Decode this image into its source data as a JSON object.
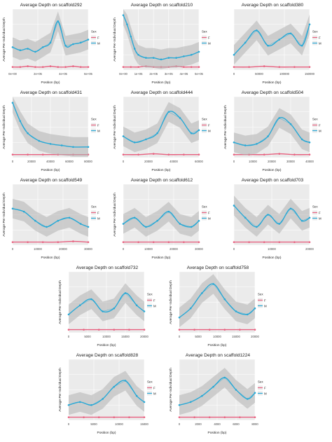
{
  "legend": {
    "title": "Sex",
    "labels": [
      "F",
      "M"
    ]
  },
  "colors": {
    "F": "#e8607f",
    "M": "#29a9d6",
    "band": "#b3b3b3",
    "panel": "#ebebeb",
    "grid": "#ffffff"
  },
  "chart_data": [
    {
      "type": "scatter",
      "title": "Average Depth on scaffold292",
      "xlabel": "Position (bp)",
      "ylabel": "Average Per-Individual Depth",
      "x_ticks": [
        "0e+00",
        "2e+05",
        "4e+05",
        "6e+05"
      ],
      "y_ticks": [
        "",
        "",
        "",
        ""
      ],
      "ylim": [
        0,
        4
      ],
      "grid": true,
      "legend": "right",
      "series": [
        {
          "name": "F",
          "x": [
            0.0,
            0.1,
            0.2,
            0.3,
            0.4,
            0.5,
            0.6,
            0.7,
            0.8,
            0.9,
            1.0
          ],
          "y": [
            0.2,
            0.2,
            0.25,
            0.2,
            0.2,
            0.25,
            0.2,
            0.2,
            0.25,
            0.2,
            0.2
          ]
        },
        {
          "name": "M",
          "x": [
            0.0,
            0.1,
            0.2,
            0.3,
            0.4,
            0.5,
            0.6,
            0.7,
            0.8,
            0.9,
            1.0
          ],
          "y": [
            1.5,
            1.3,
            1.4,
            1.2,
            1.5,
            1.8,
            3.2,
            1.6,
            1.7,
            1.8,
            2.0
          ]
        }
      ]
    },
    {
      "type": "scatter",
      "title": "Average Depth on scaffold210",
      "xlabel": "Position (bp)",
      "ylabel": "Average Per-Individual Depth",
      "x_ticks": [
        "0e+00",
        "1e+05",
        "2e+05",
        "3e+05",
        "4e+05",
        "5e+05"
      ],
      "y_ticks": [
        "",
        "",
        "",
        ""
      ],
      "ylim": [
        0,
        4
      ],
      "grid": true,
      "legend": "right",
      "series": [
        {
          "name": "F",
          "x": [
            0.0,
            0.1,
            0.2,
            0.3,
            0.4,
            0.5,
            0.6,
            0.7,
            0.8,
            0.9,
            1.0
          ],
          "y": [
            0.2,
            0.2,
            0.2,
            0.25,
            0.2,
            0.2,
            0.2,
            0.25,
            0.2,
            0.2,
            0.2
          ]
        },
        {
          "name": "M",
          "x": [
            0.0,
            0.05,
            0.1,
            0.15,
            0.2,
            0.3,
            0.4,
            0.5,
            0.6,
            0.7,
            0.8,
            0.9,
            1.0
          ],
          "y": [
            3.6,
            3.0,
            2.2,
            1.4,
            1.0,
            0.8,
            0.8,
            0.7,
            0.8,
            0.8,
            0.9,
            1.0,
            1.2
          ]
        }
      ]
    },
    {
      "type": "scatter",
      "title": "Average Depth on scaffold380",
      "xlabel": "Position (bp)",
      "ylabel": "",
      "x_ticks": [
        "0",
        "50000",
        "100000",
        "150000"
      ],
      "y_ticks": [
        "",
        "",
        "",
        ""
      ],
      "ylim": [
        0,
        4
      ],
      "grid": true,
      "legend": "right",
      "series": [
        {
          "name": "F",
          "x": [
            0.0,
            0.2,
            0.4,
            0.6,
            0.8,
            1.0
          ],
          "y": [
            0.2,
            0.2,
            0.25,
            0.2,
            0.2,
            0.2
          ]
        },
        {
          "name": "M",
          "x": [
            0.0,
            0.15,
            0.3,
            0.45,
            0.6,
            0.75,
            0.9,
            1.0
          ],
          "y": [
            1.0,
            1.8,
            2.6,
            1.6,
            2.0,
            2.4,
            1.6,
            3.0
          ]
        }
      ]
    },
    {
      "type": "scatter",
      "title": "Average Depth on scaffold431",
      "xlabel": "Position (bp)",
      "ylabel": "Average Per-Individual Depth",
      "x_ticks": [
        "0",
        "20000",
        "40000",
        "60000",
        "80000"
      ],
      "y_ticks": [
        "",
        "",
        "",
        ""
      ],
      "ylim": [
        0,
        4
      ],
      "grid": true,
      "legend": "right",
      "series": [
        {
          "name": "F",
          "x": [
            0.0,
            0.2,
            0.4,
            0.6,
            0.8,
            1.0
          ],
          "y": [
            0.2,
            0.2,
            0.2,
            0.2,
            0.2,
            0.2
          ]
        },
        {
          "name": "M",
          "x": [
            0.0,
            0.1,
            0.2,
            0.35,
            0.5,
            0.65,
            0.8,
            1.0
          ],
          "y": [
            3.6,
            2.4,
            1.6,
            1.1,
            0.9,
            0.8,
            0.7,
            0.7
          ]
        }
      ]
    },
    {
      "type": "scatter",
      "title": "Average Depth on scaffold444",
      "xlabel": "Position (bp)",
      "ylabel": "Average Per-Individual Depth",
      "x_ticks": [
        "0",
        "20000",
        "40000",
        "60000"
      ],
      "y_ticks": [
        "",
        "",
        "",
        ""
      ],
      "ylim": [
        0,
        4
      ],
      "grid": true,
      "legend": "right",
      "series": [
        {
          "name": "F",
          "x": [
            0.0,
            0.2,
            0.4,
            0.6,
            0.8,
            1.0
          ],
          "y": [
            0.2,
            0.2,
            0.25,
            0.2,
            0.2,
            0.2
          ]
        },
        {
          "name": "M",
          "x": [
            0.0,
            0.15,
            0.3,
            0.45,
            0.6,
            0.75,
            0.9,
            1.0
          ],
          "y": [
            1.4,
            1.0,
            1.2,
            1.6,
            3.0,
            2.6,
            1.6,
            1.8
          ]
        }
      ]
    },
    {
      "type": "scatter",
      "title": "Average Depth on scaffold504",
      "xlabel": "Position (bp)",
      "ylabel": "Average Per-Individual Depth",
      "x_ticks": [
        "0",
        "10000",
        "20000",
        "30000",
        "40000"
      ],
      "y_ticks": [
        "",
        "",
        "",
        ""
      ],
      "ylim": [
        0,
        4
      ],
      "grid": true,
      "legend": "right",
      "series": [
        {
          "name": "F",
          "x": [
            0.0,
            0.2,
            0.4,
            0.6,
            0.8,
            1.0
          ],
          "y": [
            0.2,
            0.2,
            0.2,
            0.25,
            0.2,
            0.2
          ]
        },
        {
          "name": "M",
          "x": [
            0.0,
            0.15,
            0.3,
            0.45,
            0.6,
            0.75,
            0.9,
            1.0
          ],
          "y": [
            1.0,
            0.8,
            0.9,
            1.4,
            2.6,
            2.2,
            1.2,
            1.0
          ]
        }
      ]
    },
    {
      "type": "scatter",
      "title": "Average Depth on scaffold549",
      "xlabel": "Position (bp)",
      "ylabel": "Average Per-Individual Depth",
      "x_ticks": [
        "0",
        "10000",
        "20000",
        "30000"
      ],
      "y_ticks": [
        "",
        "",
        "",
        ""
      ],
      "ylim": [
        0,
        4
      ],
      "grid": true,
      "legend": "right",
      "series": [
        {
          "name": "F",
          "x": [
            0.0,
            0.2,
            0.4,
            0.6,
            0.8,
            1.0
          ],
          "y": [
            0.2,
            0.2,
            0.2,
            0.2,
            0.25,
            0.2
          ]
        },
        {
          "name": "M",
          "x": [
            0.0,
            0.15,
            0.3,
            0.45,
            0.6,
            0.75,
            0.9,
            1.0
          ],
          "y": [
            2.4,
            2.2,
            1.6,
            1.2,
            1.6,
            1.8,
            1.4,
            1.2
          ]
        }
      ]
    },
    {
      "type": "scatter",
      "title": "Average Depth on scaffold612",
      "xlabel": "Position (bp)",
      "ylabel": "Average Per-Individual Depth",
      "x_ticks": [
        "0",
        "10000",
        "20000",
        "30000"
      ],
      "y_ticks": [
        "",
        "",
        "",
        ""
      ],
      "ylim": [
        0,
        4
      ],
      "grid": true,
      "legend": "right",
      "series": [
        {
          "name": "F",
          "x": [
            0.0,
            0.2,
            0.4,
            0.6,
            0.8,
            1.0
          ],
          "y": [
            0.2,
            0.2,
            0.2,
            0.2,
            0.2,
            0.2
          ]
        },
        {
          "name": "M",
          "x": [
            0.0,
            0.15,
            0.3,
            0.45,
            0.6,
            0.75,
            0.9,
            1.0
          ],
          "y": [
            1.4,
            1.8,
            1.2,
            1.6,
            2.2,
            1.4,
            1.2,
            1.6
          ]
        }
      ]
    },
    {
      "type": "scatter",
      "title": "Average Depth on scaffold703",
      "xlabel": "Position (bp)",
      "ylabel": "",
      "x_ticks": [
        "0",
        "10000",
        "20000"
      ],
      "y_ticks": [
        "",
        "",
        "",
        ""
      ],
      "ylim": [
        0,
        4
      ],
      "grid": true,
      "legend": "right",
      "series": [
        {
          "name": "F",
          "x": [
            0.0,
            0.2,
            0.4,
            0.6,
            0.8,
            1.0
          ],
          "y": [
            0.2,
            0.2,
            0.2,
            0.2,
            0.2,
            0.2
          ]
        },
        {
          "name": "M",
          "x": [
            0.0,
            0.15,
            0.3,
            0.45,
            0.6,
            0.75,
            0.9,
            1.0
          ],
          "y": [
            2.6,
            1.8,
            1.2,
            2.0,
            1.4,
            2.4,
            1.6,
            1.8
          ]
        }
      ]
    },
    {
      "type": "scatter",
      "title": "Average Depth on scaffold732",
      "xlabel": "Position (bp)",
      "ylabel": "Average Per-Individual Depth",
      "x_ticks": [
        "0",
        "5000",
        "10000",
        "15000",
        "20000"
      ],
      "y_ticks": [
        "",
        "",
        "",
        ""
      ],
      "ylim": [
        0,
        4
      ],
      "grid": true,
      "legend": "right",
      "series": [
        {
          "name": "F",
          "x": [
            0.0,
            0.2,
            0.4,
            0.6,
            0.8,
            1.0
          ],
          "y": [
            0.2,
            0.2,
            0.2,
            0.2,
            0.2,
            0.2
          ]
        },
        {
          "name": "M",
          "x": [
            0.0,
            0.15,
            0.3,
            0.45,
            0.6,
            0.75,
            0.9,
            1.0
          ],
          "y": [
            1.2,
            1.8,
            2.2,
            1.4,
            1.6,
            2.6,
            1.8,
            1.4
          ]
        }
      ]
    },
    {
      "type": "scatter",
      "title": "Average Depth on scaffold758",
      "xlabel": "Position (bp)",
      "ylabel": "Average Per-Individual Depth",
      "x_ticks": [
        "0",
        "5000",
        "10000",
        "15000",
        "20000"
      ],
      "y_ticks": [
        "",
        "",
        "",
        ""
      ],
      "ylim": [
        0,
        4
      ],
      "grid": true,
      "legend": "right",
      "series": [
        {
          "name": "F",
          "x": [
            0.0,
            0.2,
            0.4,
            0.6,
            0.8,
            1.0
          ],
          "y": [
            0.2,
            0.2,
            0.2,
            0.2,
            0.2,
            0.2
          ]
        },
        {
          "name": "M",
          "x": [
            0.0,
            0.15,
            0.3,
            0.45,
            0.6,
            0.75,
            0.9,
            1.0
          ],
          "y": [
            1.0,
            1.6,
            2.6,
            3.2,
            2.2,
            1.4,
            1.2,
            1.6
          ]
        }
      ]
    },
    {
      "type": "scatter",
      "title": "Average Depth on scaffold828",
      "xlabel": "Position (bp)",
      "ylabel": "Average Per-Individual Depth",
      "x_ticks": [
        "0",
        "5000",
        "10000",
        "15000"
      ],
      "y_ticks": [
        "",
        "",
        "",
        ""
      ],
      "ylim": [
        0,
        4
      ],
      "grid": true,
      "legend": "right",
      "series": [
        {
          "name": "F",
          "x": [
            0.0,
            0.2,
            0.4,
            0.6,
            0.8,
            1.0
          ],
          "y": [
            0.2,
            0.2,
            0.2,
            0.2,
            0.2,
            0.2
          ]
        },
        {
          "name": "M",
          "x": [
            0.0,
            0.15,
            0.3,
            0.45,
            0.6,
            0.75,
            0.9,
            1.0
          ],
          "y": [
            1.0,
            1.2,
            1.0,
            1.4,
            2.2,
            2.6,
            1.6,
            1.2
          ]
        }
      ]
    },
    {
      "type": "scatter",
      "title": "Average Depth on scaffold1224",
      "xlabel": "Position (bp)",
      "ylabel": "Average Per-Individual Depth",
      "x_ticks": [
        "0",
        "2000",
        "4000",
        "6000",
        "8000"
      ],
      "y_ticks": [
        "",
        "",
        "",
        ""
      ],
      "ylim": [
        0,
        4
      ],
      "grid": true,
      "legend": "right",
      "series": [
        {
          "name": "F",
          "x": [
            0.0,
            0.2,
            0.4,
            0.6,
            0.8,
            1.0
          ],
          "y": [
            0.2,
            0.2,
            0.2,
            0.2,
            0.2,
            0.2
          ]
        },
        {
          "name": "M",
          "x": [
            0.0,
            0.15,
            0.3,
            0.45,
            0.6,
            0.75,
            0.9,
            1.0
          ],
          "y": [
            1.0,
            1.2,
            1.6,
            2.2,
            2.8,
            2.0,
            1.4,
            1.8
          ]
        }
      ]
    }
  ]
}
